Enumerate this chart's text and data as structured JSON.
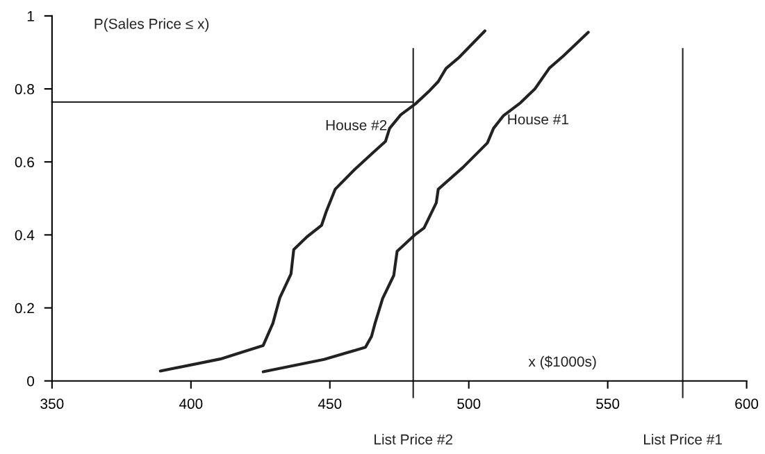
{
  "chart_data": {
    "type": "line",
    "ylabel": "P(Sales Price ≤ x)",
    "xlabel": "x ($1000s)",
    "xlim": [
      350,
      600
    ],
    "xticks": [
      350,
      400,
      450,
      500,
      550,
      600
    ],
    "ylim": [
      0,
      1
    ],
    "yticks": [
      0,
      0.2,
      0.4,
      0.6,
      0.8,
      1
    ],
    "grid": false,
    "marker": "none",
    "line_style": "solid",
    "series": [
      {
        "name": "House #2",
        "color": "#222222",
        "x": [
          389,
          410.6,
          426,
          429.5,
          432,
          436,
          437,
          441.8,
          447,
          448.8,
          451.9,
          458.9,
          465.5,
          470,
          471.5,
          475.5,
          480.8,
          486,
          489,
          491.8,
          496.6,
          505.8
        ],
        "values": [
          0.027,
          0.06,
          0.097,
          0.158,
          0.228,
          0.293,
          0.36,
          0.395,
          0.426,
          0.466,
          0.525,
          0.579,
          0.625,
          0.656,
          0.692,
          0.729,
          0.759,
          0.796,
          0.82,
          0.856,
          0.887,
          0.959
        ]
      },
      {
        "name": "House #1",
        "color": "#222222",
        "x": [
          426,
          447.9,
          462.8,
          465,
          466.3,
          469,
          473,
          474.2,
          480.4,
          483.9,
          488.3,
          489,
          497.9,
          506.7,
          508.9,
          512.4,
          518.6,
          523.8,
          529,
          534,
          543
        ],
        "values": [
          0.025,
          0.059,
          0.092,
          0.122,
          0.159,
          0.226,
          0.289,
          0.355,
          0.399,
          0.419,
          0.488,
          0.525,
          0.585,
          0.652,
          0.692,
          0.726,
          0.762,
          0.8,
          0.857,
          0.89,
          0.955
        ]
      }
    ],
    "ref_lines": [
      {
        "axis": "x",
        "value": 480,
        "label": "List Price #2",
        "color": "#222222"
      },
      {
        "axis": "x",
        "value": 577,
        "label": "List Price #1",
        "color": "#222222"
      },
      {
        "axis": "y",
        "value": 0.764,
        "color": "#222222"
      }
    ]
  }
}
